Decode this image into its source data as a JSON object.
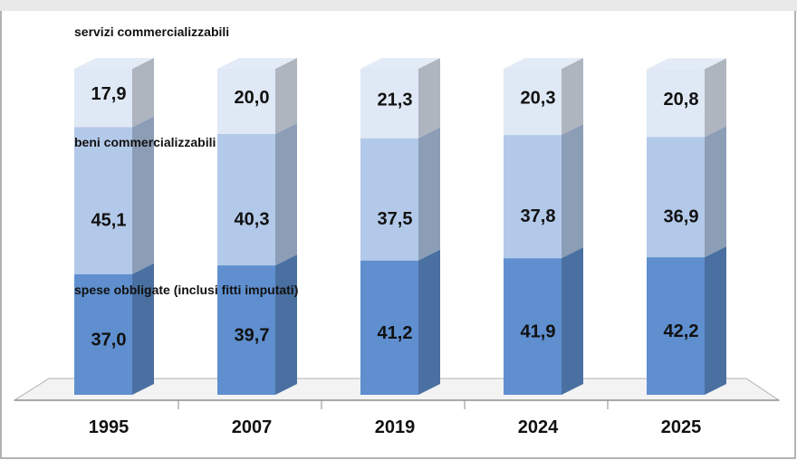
{
  "chart_data": {
    "type": "bar",
    "stacked": true,
    "categories": [
      "1995",
      "2007",
      "2019",
      "2024",
      "2025"
    ],
    "series": [
      {
        "name": "spese obbligate (inclusi fitti imputati)",
        "values": [
          37.0,
          39.7,
          41.2,
          41.9,
          42.2
        ],
        "value_labels": [
          "37,0",
          "39,7",
          "41,2",
          "41,9",
          "42,2"
        ],
        "color": "#5f8fcf"
      },
      {
        "name": "beni commercializzabili",
        "values": [
          45.1,
          40.3,
          37.5,
          37.8,
          36.9
        ],
        "value_labels": [
          "45,1",
          "40,3",
          "37,5",
          "37,8",
          "36,9"
        ],
        "color": "#b3c9e9"
      },
      {
        "name": "servizi commercializzabili",
        "values": [
          17.9,
          20.0,
          21.3,
          20.3,
          20.8
        ],
        "value_labels": [
          "17,9",
          "20,0",
          "21,3",
          "20,3",
          "20,8"
        ],
        "color": "#dfe8f5"
      }
    ],
    "ylim": [
      0,
      100
    ],
    "grid": false,
    "legend": "inline labels on first bar",
    "title": "",
    "xlabel": "",
    "ylabel": ""
  }
}
